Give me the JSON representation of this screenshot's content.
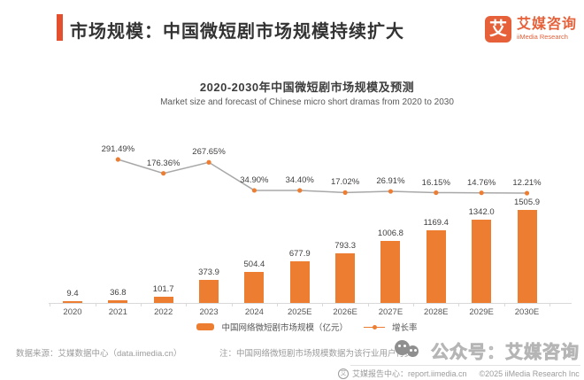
{
  "header": {
    "title": "市场规模：中国微短剧市场规模持续扩大"
  },
  "logo": {
    "glyph": "艾",
    "name_cn": "艾媒咨询",
    "name_en": "iiMedia Research"
  },
  "chart": {
    "title": "2020-2030年中国微短剧市场规模及预测",
    "subtitle": "Market size and forecast of Chinese micro short dramas from 2020 to 2030"
  },
  "chart_data": {
    "type": "combo_bar_line",
    "title": "2020-2030年中国微短剧市场规模及预测",
    "subtitle": "Market size and forecast of Chinese micro short dramas from 2020 to 2030",
    "categories": [
      "2020",
      "2021",
      "2022",
      "2023",
      "2024",
      "2025E",
      "2026E",
      "2027E",
      "2028E",
      "2029E",
      "2030E"
    ],
    "series": [
      {
        "name": "中国网络微短剧市场规模（亿元）",
        "type": "bar",
        "values": [
          9.4,
          36.8,
          101.7,
          373.9,
          504.4,
          677.9,
          793.3,
          1006.8,
          1169.4,
          1342.0,
          1505.9
        ],
        "labels": [
          "9.4",
          "36.8",
          "101.7",
          "373.9",
          "504.4",
          "677.9",
          "793.3",
          "1006.8",
          "1169.4",
          "1342.0",
          "1505.9"
        ]
      },
      {
        "name": "增长率",
        "type": "line",
        "unit": "%",
        "values": [
          null,
          291.49,
          176.36,
          267.65,
          34.9,
          34.4,
          17.02,
          26.91,
          16.15,
          14.76,
          12.21
        ],
        "labels": [
          "",
          "291.49%",
          "176.36%",
          "267.65%",
          "34.90%",
          "34.40%",
          "17.02%",
          "26.91%",
          "16.15%",
          "14.76%",
          "12.21%"
        ]
      }
    ],
    "ylim_bar": [
      0,
      1600
    ],
    "ylim_line_pct": [
      0,
      300
    ],
    "grid": false,
    "legend_position": "bottom",
    "colors": {
      "bar": "#ED7D31",
      "line": "#A8A8A8",
      "marker": "#ED7D31"
    }
  },
  "footer": {
    "source": "数据来源：艾媒数据中心（data.iimedia.cn）",
    "note": "注：中国网络微短剧市场规模数据为该行业用户付费、",
    "watermark": "公众号：艾媒咨询",
    "report_icon_glyph": "艾",
    "report_center": "艾媒报告中心：report.iimedia.cn",
    "copyright": "©2025  iiMedia Research Inc"
  },
  "colors": {
    "accent": "#E4502E",
    "brand": "#E6603A",
    "bar_orange": "#ED7D31"
  }
}
